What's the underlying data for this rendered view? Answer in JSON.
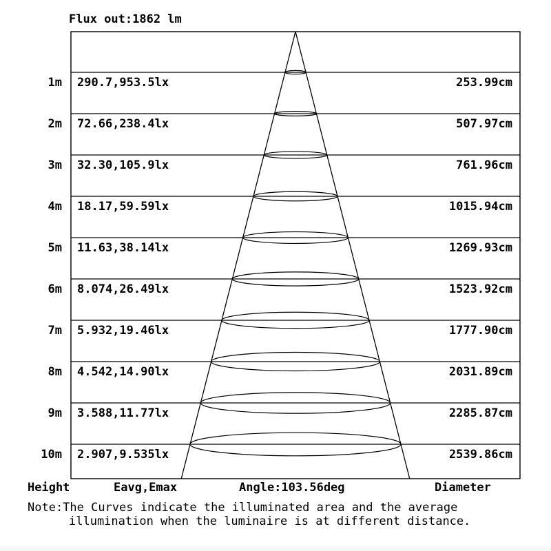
{
  "title": "Flux out:1862 lm",
  "table": {
    "rows": [
      {
        "height": "1m",
        "eavg_emax": "290.7,953.5lx",
        "diameter": "253.99cm"
      },
      {
        "height": "2m",
        "eavg_emax": "72.66,238.4lx",
        "diameter": "507.97cm"
      },
      {
        "height": "3m",
        "eavg_emax": "32.30,105.9lx",
        "diameter": "761.96cm"
      },
      {
        "height": "4m",
        "eavg_emax": "18.17,59.59lx",
        "diameter": "1015.94cm"
      },
      {
        "height": "5m",
        "eavg_emax": "11.63,38.14lx",
        "diameter": "1269.93cm"
      },
      {
        "height": "6m",
        "eavg_emax": "8.074,26.49lx",
        "diameter": "1523.92cm"
      },
      {
        "height": "7m",
        "eavg_emax": "5.932,19.46lx",
        "diameter": "1777.90cm"
      },
      {
        "height": "8m",
        "eavg_emax": "4.542,14.90lx",
        "diameter": "2031.89cm"
      },
      {
        "height": "9m",
        "eavg_emax": "3.588,11.77lx",
        "diameter": "2285.87cm"
      },
      {
        "height": "10m",
        "eavg_emax": "2.907,9.535lx",
        "diameter": "2539.86cm"
      }
    ],
    "footer": {
      "height_label": "Height",
      "eavg_label": "Eavg,Emax",
      "angle_label": "Angle:103.56deg",
      "diameter_label": "Diameter"
    }
  },
  "note": {
    "line1": "Note:The Curves indicate the illuminated area and the average",
    "line2": "illumination when the luminaire is at different distance."
  },
  "chart_data": {
    "type": "table",
    "title": "Flux out:1862 lm",
    "flux_lm": 1862,
    "beam_angle_deg": 103.56,
    "height_m": [
      1,
      2,
      3,
      4,
      5,
      6,
      7,
      8,
      9,
      10
    ],
    "eavg_lx": [
      290.7,
      72.66,
      32.3,
      18.17,
      11.63,
      8.074,
      5.932,
      4.542,
      3.588,
      2.907
    ],
    "emax_lx": [
      953.5,
      238.4,
      105.9,
      59.59,
      38.14,
      26.49,
      19.46,
      14.9,
      11.77,
      9.535
    ],
    "diameter_cm": [
      253.99,
      507.97,
      761.96,
      1015.94,
      1269.93,
      1523.92,
      1777.9,
      2031.89,
      2285.87,
      2539.86
    ],
    "columns": [
      "Height",
      "Eavg,Emax",
      "Angle:103.56deg",
      "Diameter"
    ]
  },
  "colors": {
    "line": "#000000",
    "text": "#000000",
    "background": "#ffffff"
  }
}
